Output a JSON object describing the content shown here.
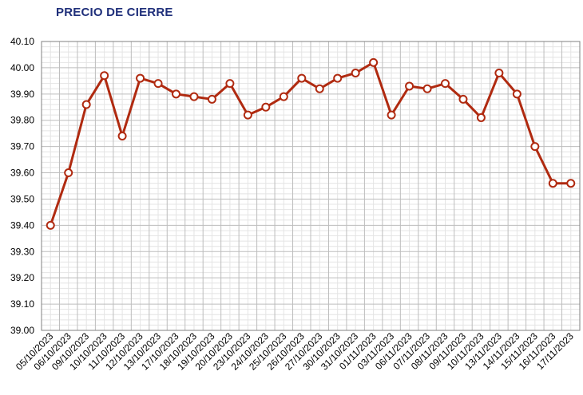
{
  "chart_data": {
    "type": "line",
    "title": "PRECIO DE CIERRE",
    "xlabel": "",
    "ylabel": "",
    "ylim": [
      39.0,
      40.1
    ],
    "ystep": 0.1,
    "grid": true,
    "line_color": "#b02a10",
    "title_color": "#1f2f7a",
    "categories": [
      "05/10/2023",
      "06/10/2023",
      "09/10/2023",
      "10/10/2023",
      "11/10/2023",
      "12/10/2023",
      "13/10/2023",
      "17/10/2023",
      "18/10/2023",
      "19/10/2023",
      "20/10/2023",
      "23/10/2023",
      "24/10/2023",
      "25/10/2023",
      "26/10/2023",
      "27/10/2023",
      "30/10/2023",
      "31/10/2023",
      "01/11/2023",
      "03/11/2023",
      "06/11/2023",
      "07/11/2023",
      "08/11/2023",
      "09/11/2023",
      "10/11/2023",
      "13/11/2023",
      "14/11/2023",
      "15/11/2023",
      "16/11/2023",
      "17/11/2023"
    ],
    "values": [
      39.4,
      39.6,
      39.86,
      39.97,
      39.74,
      39.96,
      39.94,
      39.9,
      39.89,
      39.88,
      39.94,
      39.82,
      39.85,
      39.89,
      39.96,
      39.92,
      39.96,
      39.98,
      40.02,
      39.82,
      39.93,
      39.92,
      39.94,
      39.88,
      39.81,
      39.98,
      39.9,
      39.7,
      39.56,
      39.56
    ]
  }
}
